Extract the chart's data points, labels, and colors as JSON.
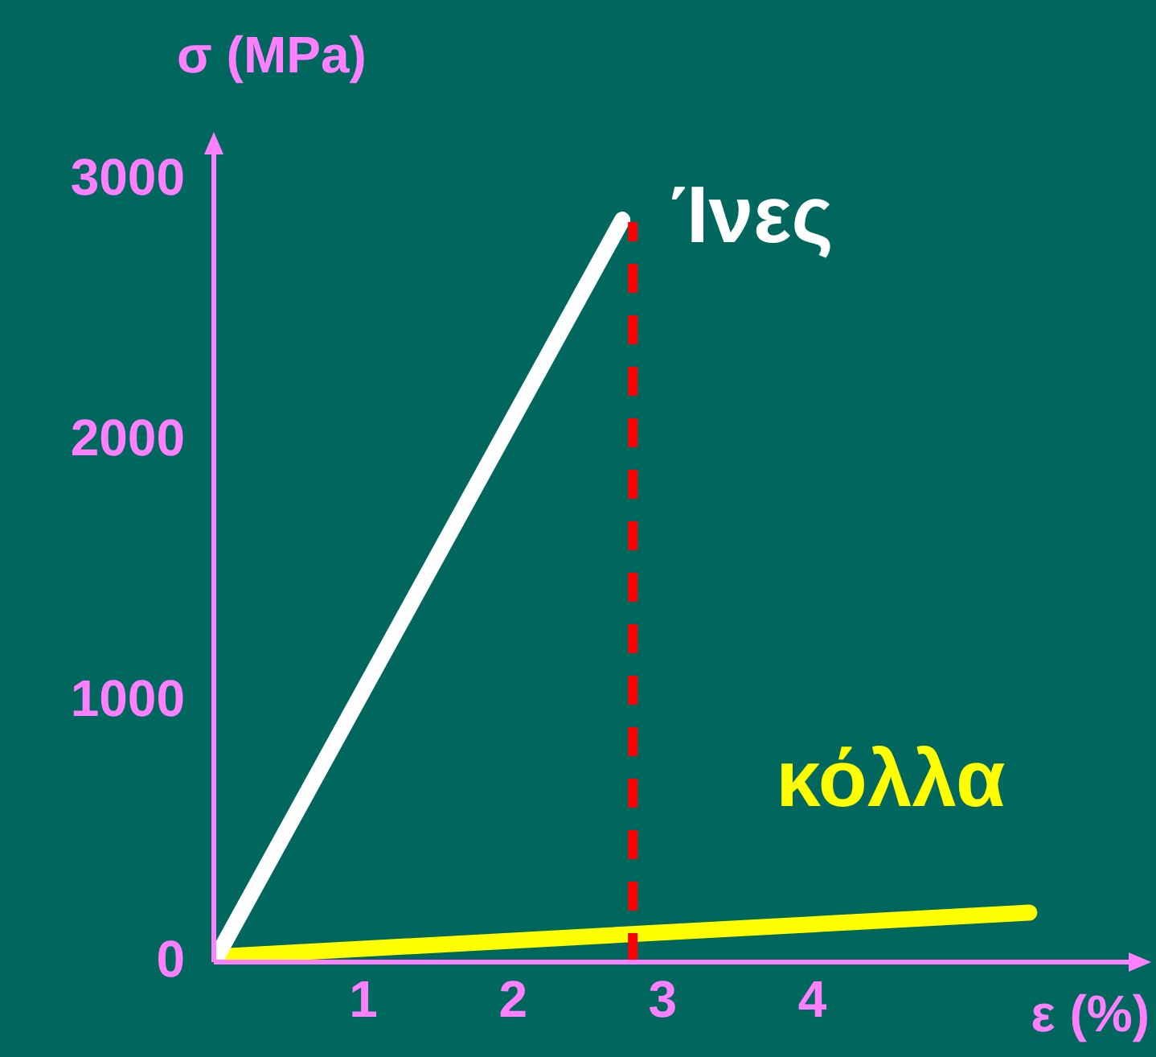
{
  "chart_data": {
    "type": "line",
    "xlabel": "ε (%)",
    "ylabel": "σ (MPa)",
    "xlim": [
      0,
      6.2
    ],
    "ylim": [
      0,
      3150
    ],
    "xticks": [
      1,
      2,
      3,
      4
    ],
    "yticks": [
      0,
      1000,
      2000,
      3000
    ],
    "grid": false,
    "legend": false,
    "marker": "none",
    "series": [
      {
        "name": "Ίνες",
        "color": "#ffffff",
        "x": [
          0,
          2.73
        ],
        "values": [
          0,
          2850
        ]
      },
      {
        "name": "κόλλα",
        "color": "#ffff00",
        "x": [
          0,
          5.45
        ],
        "values": [
          20,
          190
        ]
      }
    ],
    "ref_lines": [
      {
        "axis": "x",
        "value": 2.8,
        "color": "#ff0000",
        "line_style": "dashed"
      }
    ]
  }
}
